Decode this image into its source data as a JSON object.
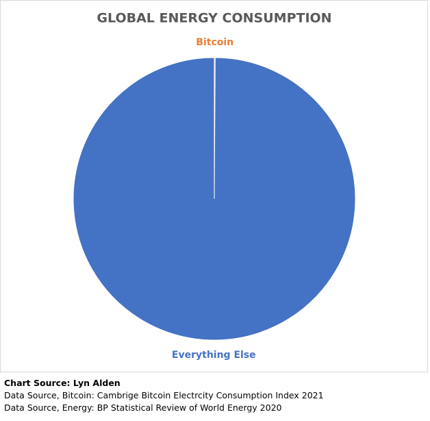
{
  "chart_data": {
    "type": "pie",
    "title": "GLOBAL ENERGY CONSUMPTION",
    "categories": [
      "Bitcoin",
      "Everything Else"
    ],
    "values": [
      0.1,
      99.9
    ],
    "colors": [
      "#ED7D31",
      "#4472C4"
    ],
    "source": "Chart Source: Lyn Alden",
    "notes": [
      "Data Source, Bitcoin: Cambrige Bitcoin Electrcity Consumption Index 2021",
      "Data Source, Energy: BP Statistical Review of World Energy 2020"
    ]
  }
}
